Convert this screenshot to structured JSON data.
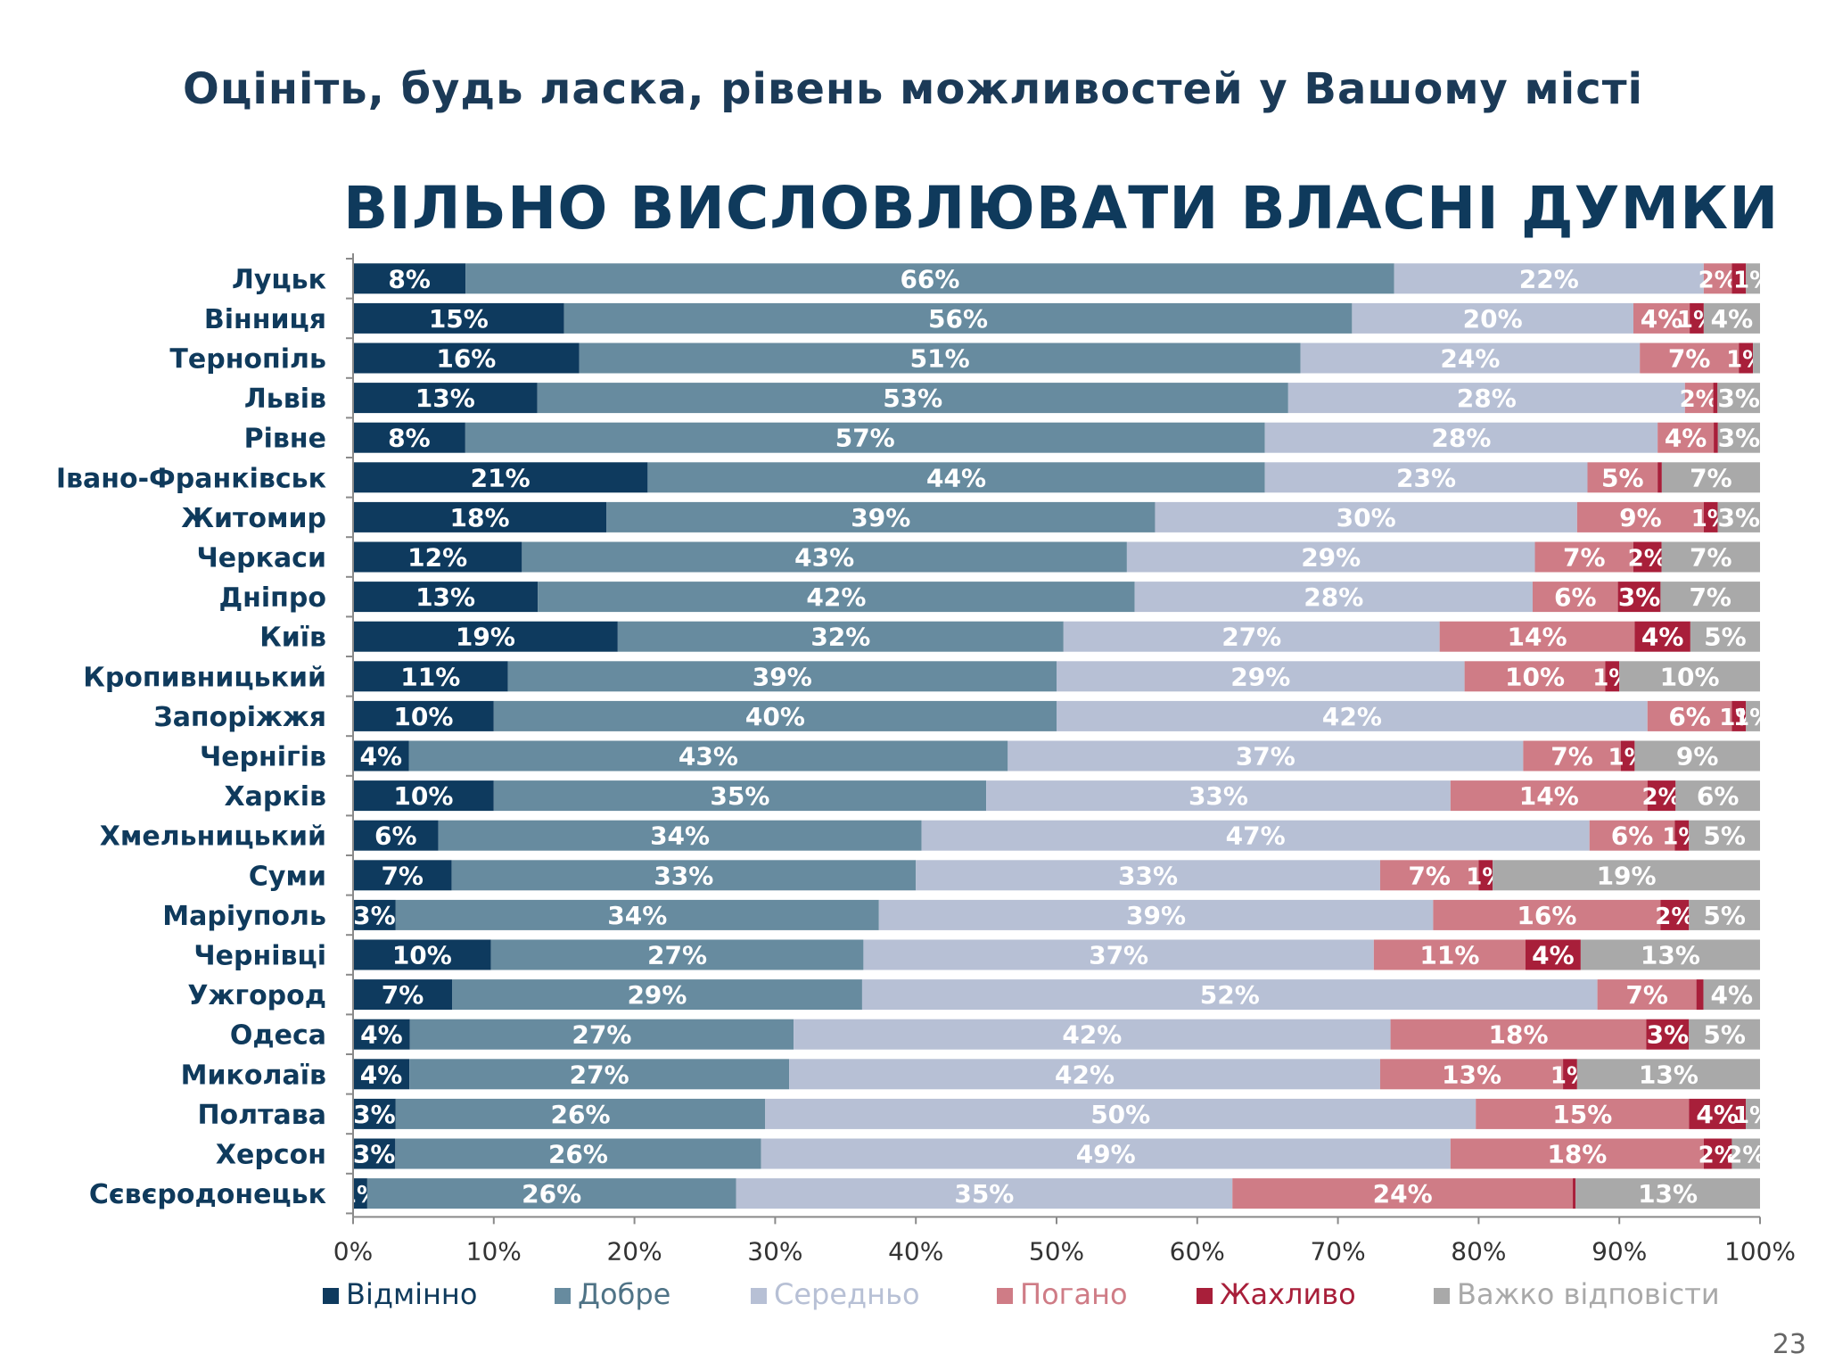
{
  "page": {
    "title": "Оцініть, будь ласка, рівень можливостей у Вашому місті",
    "page_number": "23"
  },
  "chart_data": {
    "type": "bar",
    "orientation": "horizontal",
    "stacked": "percent",
    "title": "ВІЛЬНО ВИСЛОВЛЮВАТИ ВЛАСНІ ДУМКИ",
    "xlim": [
      0,
      100
    ],
    "x_ticks": [
      "0%",
      "10%",
      "20%",
      "30%",
      "40%",
      "50%",
      "60%",
      "70%",
      "80%",
      "90%",
      "100%"
    ],
    "legend_position": "bottom",
    "categories": [
      "Луцьк",
      "Вінниця",
      "Тернопіль",
      "Львів",
      "Рівне",
      "Івано-Франківськ",
      "Житомир",
      "Черкаси",
      "Дніпро",
      "Київ",
      "Кропивницький",
      "Запоріжжя",
      "Чернігів",
      "Харків",
      "Хмельницький",
      "Суми",
      "Маріуполь",
      "Чернівці",
      "Ужгород",
      "Одеса",
      "Миколаїв",
      "Полтава",
      "Херсон",
      "Сєвєродонецьк"
    ],
    "series": [
      {
        "name": "Відмінно",
        "color": "#0e3a5e",
        "values": [
          8,
          15,
          16,
          13,
          8,
          21,
          18,
          12,
          13,
          19,
          11,
          10,
          4,
          10,
          6,
          7,
          3,
          10,
          7,
          4,
          4,
          3,
          3,
          1
        ]
      },
      {
        "name": "Добре",
        "color": "#678b9f",
        "values": [
          66,
          56,
          51,
          53,
          57,
          44,
          39,
          43,
          42,
          32,
          39,
          40,
          43,
          35,
          34,
          33,
          34,
          27,
          29,
          27,
          27,
          26,
          26,
          26
        ]
      },
      {
        "name": "Середньо",
        "color": "#b7c0d5",
        "values": [
          22,
          20,
          24,
          28,
          28,
          23,
          30,
          29,
          28,
          27,
          29,
          42,
          37,
          33,
          47,
          33,
          39,
          37,
          52,
          42,
          42,
          50,
          49,
          35
        ]
      },
      {
        "name": "Погано",
        "color": "#cf7c86",
        "values": [
          2,
          4,
          7,
          2,
          4,
          5,
          9,
          7,
          6,
          14,
          10,
          6,
          7,
          14,
          6,
          7,
          16,
          11,
          7,
          18,
          13,
          15,
          18,
          24
        ]
      },
      {
        "name": "Жахливо",
        "color": "#a81f3a",
        "values": [
          1,
          1,
          1,
          0.3,
          0.3,
          0.3,
          1,
          2,
          3,
          4,
          1,
          1,
          1,
          2,
          1,
          1,
          2,
          4,
          0.5,
          3,
          1,
          4,
          2,
          0.2
        ]
      },
      {
        "name": "Важко відповісти",
        "color": "#a9a9a9",
        "values": [
          1,
          4,
          0.5,
          3,
          3,
          7,
          3,
          7,
          7,
          5,
          10,
          1,
          9,
          6,
          5,
          19,
          5,
          13,
          4,
          5,
          13,
          1,
          2,
          13
        ]
      }
    ],
    "data_labels": [
      [
        "8%",
        "66%",
        "22%",
        "2%",
        "",
        "1%"
      ],
      [
        "15%",
        "56%",
        "20%",
        "4%",
        "1%",
        "4%"
      ],
      [
        "16%",
        "51%",
        "24%",
        "7%",
        "1%",
        ""
      ],
      [
        "13%",
        "53%",
        "28%",
        "2%",
        "",
        "3%"
      ],
      [
        "8%",
        "57%",
        "28%",
        "4%",
        "",
        "3%"
      ],
      [
        "21%",
        "44%",
        "23%",
        "5%",
        "",
        "7%"
      ],
      [
        "18%",
        "39%",
        "30%",
        "9%",
        "1%",
        "3%"
      ],
      [
        "12%",
        "43%",
        "29%",
        "7%",
        "2%",
        "7%"
      ],
      [
        "13%",
        "42%",
        "28%",
        "6%",
        "3%",
        "7%"
      ],
      [
        "19%",
        "32%",
        "27%",
        "14%",
        "4%",
        "5%"
      ],
      [
        "11%",
        "39%",
        "29%",
        "10%",
        "1%",
        "10%"
      ],
      [
        "10%",
        "40%",
        "42%",
        "6%",
        "1%",
        "1%"
      ],
      [
        "4%",
        "43%",
        "37%",
        "7%",
        "1%",
        "9%"
      ],
      [
        "10%",
        "35%",
        "33%",
        "14%",
        "2%",
        "6%"
      ],
      [
        "6%",
        "34%",
        "47%",
        "6%",
        "1%",
        "5%"
      ],
      [
        "7%",
        "33%",
        "33%",
        "7%",
        "1%",
        "19%"
      ],
      [
        "3%",
        "34%",
        "39%",
        "16%",
        "2%",
        "5%"
      ],
      [
        "10%",
        "27%",
        "37%",
        "11%",
        "4%",
        "13%"
      ],
      [
        "7%",
        "29%",
        "52%",
        "7%",
        "",
        "4%"
      ],
      [
        "4%",
        "27%",
        "42%",
        "18%",
        "3%",
        "5%"
      ],
      [
        "4%",
        "27%",
        "42%",
        "13%",
        "1%",
        "13%"
      ],
      [
        "3%",
        "26%",
        "50%",
        "15%",
        "4%",
        "1%"
      ],
      [
        "3%",
        "26%",
        "49%",
        "18%",
        "2%",
        "2%"
      ],
      [
        "1%",
        "26%",
        "35%",
        "24%",
        "",
        "13%"
      ]
    ]
  }
}
